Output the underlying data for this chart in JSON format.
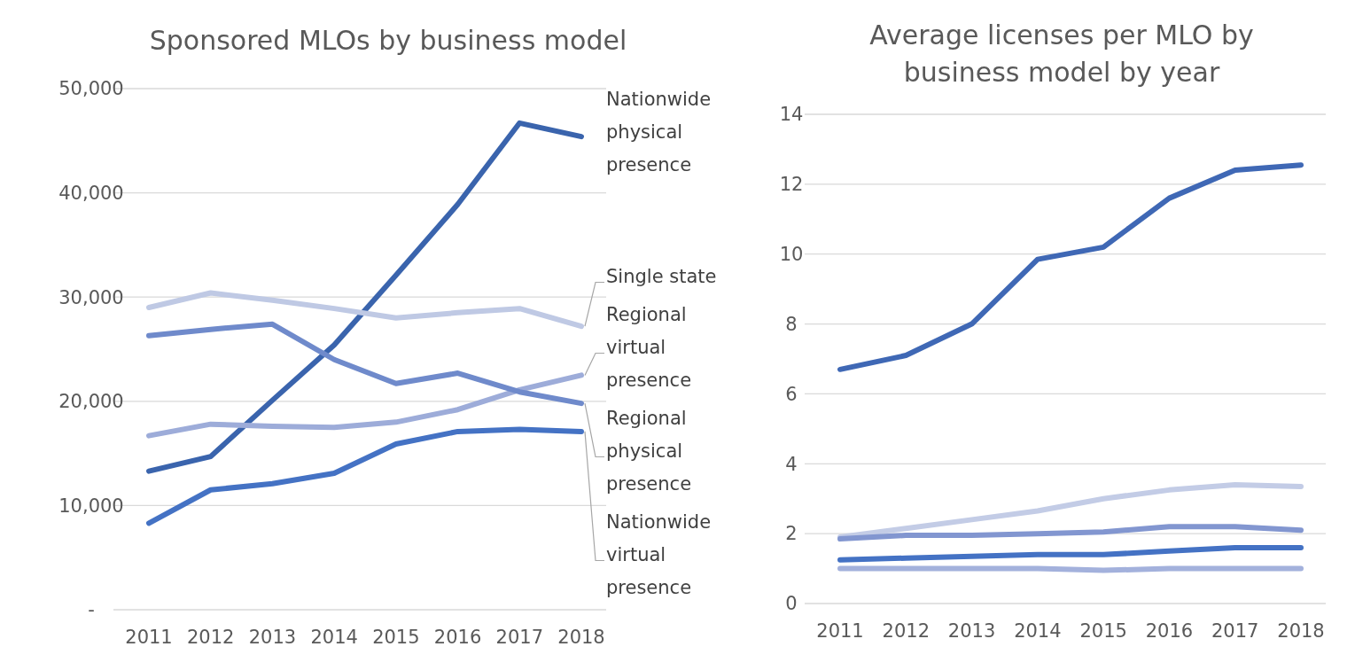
{
  "chart_data": [
    {
      "type": "line",
      "title": "Sponsored MLOs by business model",
      "categories": [
        "2011",
        "2012",
        "2013",
        "2014",
        "2015",
        "2016",
        "2017",
        "2018"
      ],
      "series": [
        {
          "name": "Nationwide physical presence",
          "color": "#3a64ad",
          "values": [
            13300,
            14700,
            20100,
            25400,
            32100,
            38900,
            46700,
            45400
          ]
        },
        {
          "name": "Single state",
          "color": "#bfc9e4",
          "values": [
            29000,
            30400,
            29700,
            28900,
            28000,
            28500,
            28900,
            27200
          ]
        },
        {
          "name": "Regional virtual presence",
          "color": "#9dacd9",
          "values": [
            16700,
            17800,
            17600,
            17500,
            18000,
            19200,
            21100,
            22500
          ]
        },
        {
          "name": "Regional physical presence",
          "color": "#6f8acb",
          "values": [
            26300,
            26900,
            27400,
            24000,
            21700,
            22700,
            20900,
            19800
          ]
        },
        {
          "name": "Nationwide virtual presence",
          "color": "#4472c4",
          "values": [
            8300,
            11500,
            12100,
            13100,
            15900,
            17100,
            17300,
            17100
          ]
        }
      ],
      "ylim": [
        0,
        50000
      ],
      "yticks": [
        {
          "value": 0,
          "label": "-"
        },
        {
          "value": 10000,
          "label": "10,000"
        },
        {
          "value": 20000,
          "label": "20,000"
        },
        {
          "value": 30000,
          "label": "30,000"
        },
        {
          "value": 40000,
          "label": "40,000"
        },
        {
          "value": 50000,
          "label": "50,000"
        }
      ],
      "grid": "y"
    },
    {
      "type": "line",
      "title": "Average licenses per MLO by business model by year",
      "categories": [
        "2011",
        "2012",
        "2013",
        "2014",
        "2015",
        "2016",
        "2017",
        "2018"
      ],
      "series": [
        {
          "color": "#3f68b5",
          "values": [
            6.7,
            7.1,
            8.0,
            9.85,
            10.2,
            11.6,
            12.4,
            12.55
          ]
        },
        {
          "color": "#c3cce6",
          "values": [
            1.9,
            2.15,
            2.4,
            2.65,
            3.0,
            3.25,
            3.4,
            3.35
          ]
        },
        {
          "color": "#8296d0",
          "values": [
            1.85,
            1.95,
            1.95,
            2.0,
            2.05,
            2.2,
            2.2,
            2.1
          ]
        },
        {
          "color": "#4472c4",
          "values": [
            1.25,
            1.3,
            1.35,
            1.4,
            1.4,
            1.5,
            1.6,
            1.6
          ]
        },
        {
          "color": "#a3b1dc",
          "values": [
            1.0,
            1.0,
            1.0,
            1.0,
            0.95,
            1.0,
            1.0,
            1.0
          ]
        }
      ],
      "ylim": [
        0,
        14
      ],
      "yticks": [
        0,
        2,
        4,
        6,
        8,
        10,
        12,
        14
      ],
      "grid": "y"
    }
  ]
}
